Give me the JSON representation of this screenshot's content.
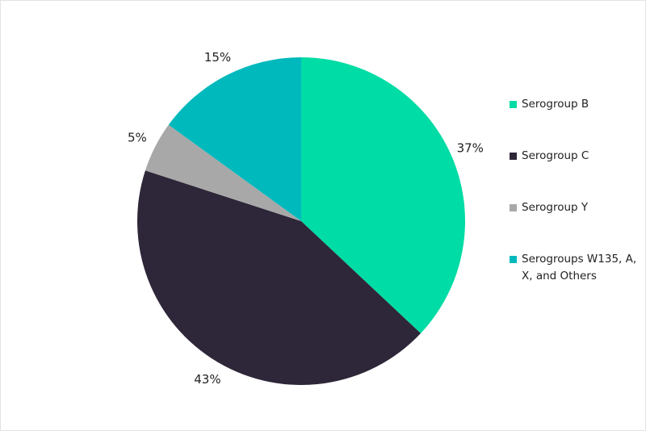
{
  "chart_data": {
    "type": "pie",
    "categories": [
      "Serogroup B",
      "Serogroup C",
      "Serogroup Y",
      "Serogroups W135, A, X, and Others"
    ],
    "values": [
      37,
      43,
      5,
      15
    ],
    "value_labels": [
      "37%",
      "43%",
      "5%",
      "15%"
    ],
    "colors": [
      "#00dca5",
      "#2e2639",
      "#a8a8a8",
      "#00b9bd"
    ],
    "start_angle_deg": 0,
    "direction": "clockwise",
    "legend_position": "right",
    "title": ""
  }
}
